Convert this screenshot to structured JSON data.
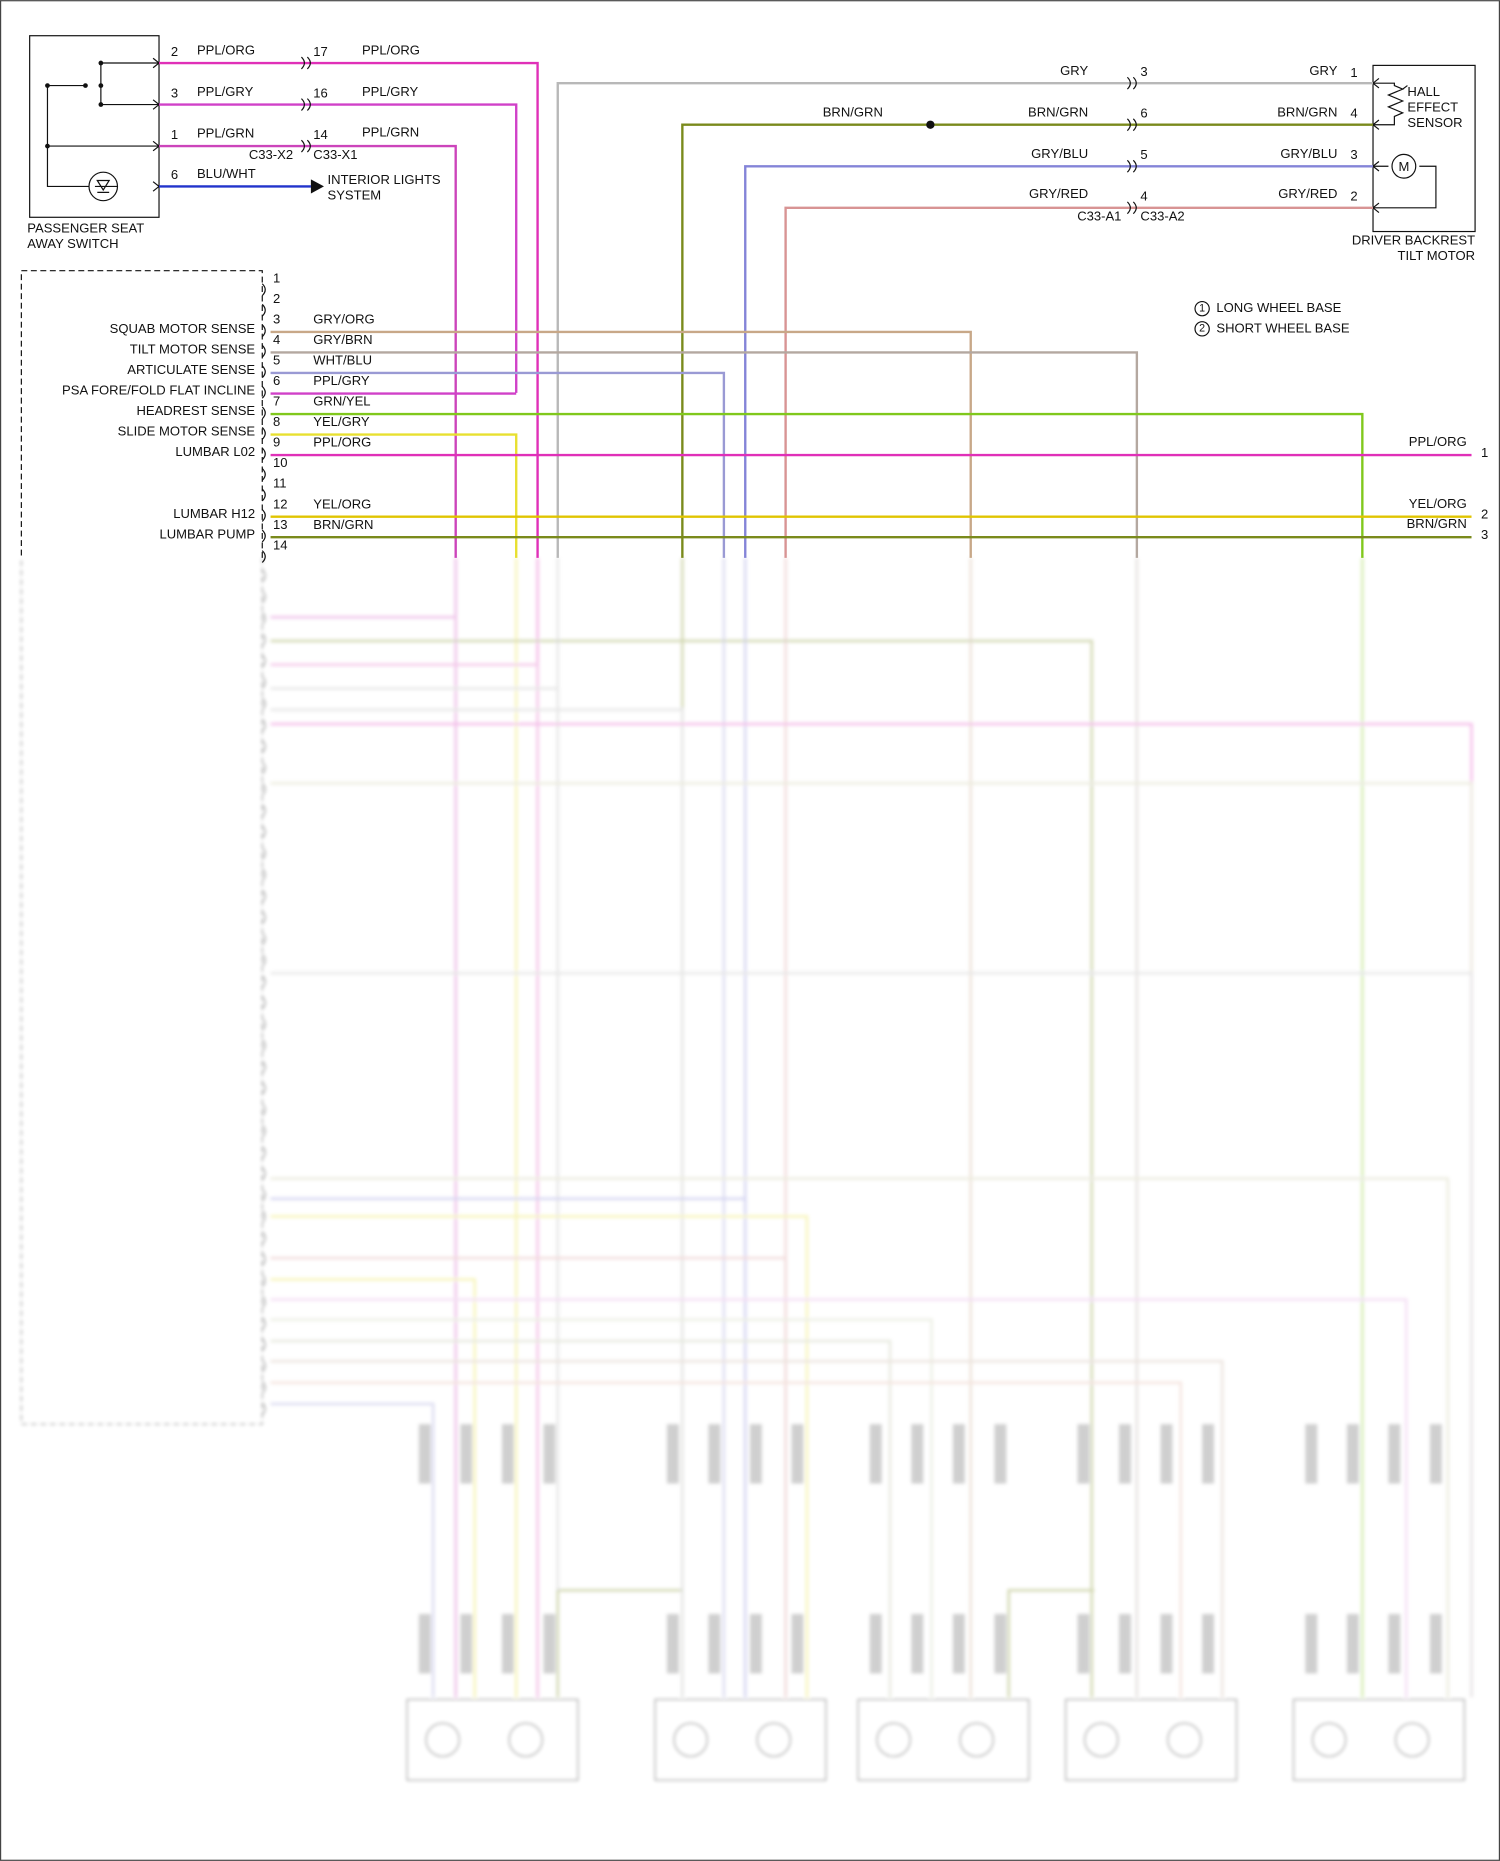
{
  "passenger_seat_away_switch": {
    "label": [
      "PASSENGER SEAT",
      "AWAY SWITCH"
    ],
    "pins": [
      "2",
      "3",
      "1",
      "6"
    ],
    "wires": [
      "PPL/ORG",
      "PPL/GRY",
      "PPL/GRN",
      "BLU/WHT"
    ]
  },
  "connector_c33_x": {
    "names": [
      "C33-X2",
      "C33-X1"
    ],
    "pins": [
      "17",
      "16",
      "14"
    ],
    "wires": [
      "PPL/ORG",
      "PPL/GRY",
      "PPL/GRN"
    ]
  },
  "interior_lights": [
    "INTERIOR LIGHTS",
    "SYSTEM"
  ],
  "splice_wire": "BRN/GRN",
  "connector_c33_a": {
    "names": [
      "C33-A1",
      "C33-A2"
    ],
    "pins": [
      "3",
      "6",
      "5",
      "4"
    ],
    "wires_left": [
      "GRY",
      "BRN/GRN",
      "GRY/BLU",
      "GRY/RED"
    ],
    "wires_right": [
      "GRY",
      "BRN/GRN",
      "GRY/BLU",
      "GRY/RED"
    ]
  },
  "driver_backrest_tilt_motor": {
    "label": [
      "DRIVER BACKREST",
      "TILT MOTOR"
    ],
    "pins": [
      "1",
      "4",
      "3",
      "2"
    ],
    "hall_sensor": [
      "HALL",
      "EFFECT",
      "SENSOR"
    ],
    "motor": "M"
  },
  "legend": [
    {
      "num": "1",
      "label": "LONG WHEEL BASE"
    },
    {
      "num": "2",
      "label": "SHORT WHEEL BASE"
    }
  ],
  "module": {
    "pins": [
      {
        "pin": "1"
      },
      {
        "pin": "2"
      },
      {
        "pin": "3",
        "function": "SQUAB MOTOR SENSE",
        "wire": "GRY/ORG"
      },
      {
        "pin": "4",
        "function": "TILT MOTOR SENSE",
        "wire": "GRY/BRN"
      },
      {
        "pin": "5",
        "function": "ARTICULATE SENSE",
        "wire": "WHT/BLU"
      },
      {
        "pin": "6",
        "function": "PSA FORE/FOLD FLAT INCLINE",
        "wire": "PPL/GRY"
      },
      {
        "pin": "7",
        "function": "HEADREST SENSE",
        "wire": "GRN/YEL"
      },
      {
        "pin": "8",
        "function": "SLIDE MOTOR SENSE",
        "wire": "YEL/GRY"
      },
      {
        "pin": "9",
        "function": "LUMBAR L02",
        "wire": "PPL/ORG"
      },
      {
        "pin": "10"
      },
      {
        "pin": "11"
      },
      {
        "pin": "12",
        "function": "LUMBAR H12",
        "wire": "YEL/ORG"
      },
      {
        "pin": "13",
        "function": "LUMBAR PUMP",
        "wire": "BRN/GRN"
      },
      {
        "pin": "14"
      }
    ]
  },
  "module_right": [
    {
      "wire": "PPL/ORG",
      "pin": "1"
    },
    {
      "wire": "YEL/ORG",
      "pin": "2"
    },
    {
      "wire": "BRN/GRN",
      "pin": "3"
    }
  ]
}
